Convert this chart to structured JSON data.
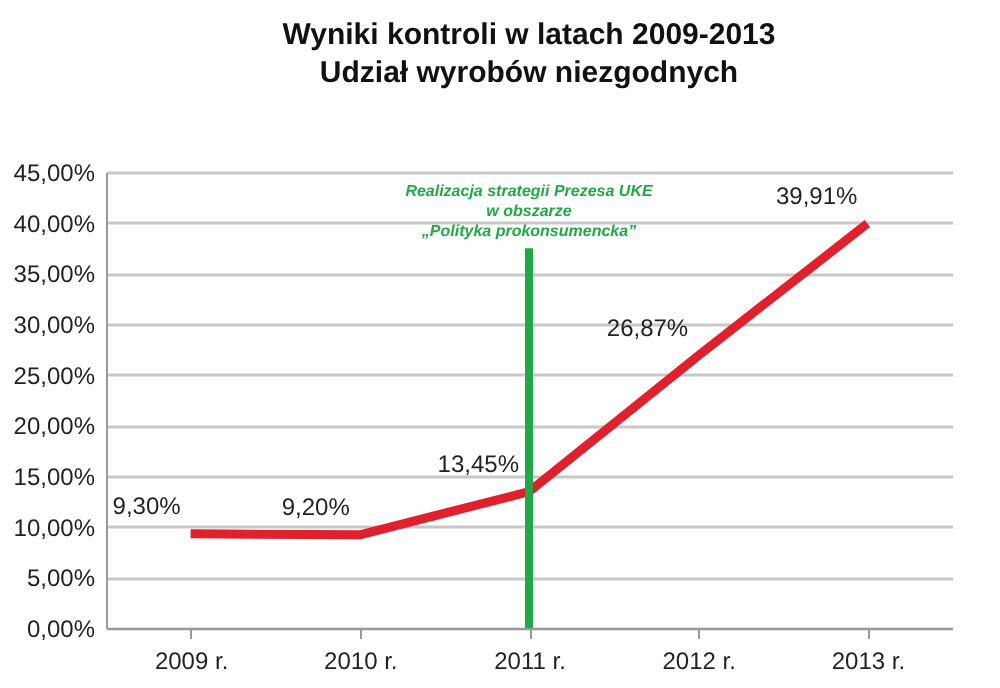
{
  "chart_data": {
    "type": "line",
    "title": "Wyniki kontroli w latach 2009-2013",
    "subtitle": "Udział wyrobów niezgodnych",
    "categories": [
      "2009 r.",
      "2010 r.",
      "2011 r.",
      "2012 r.",
      "2013 r."
    ],
    "series": [
      {
        "color": "#e0202a",
        "values": [
          9.3,
          9.2,
          13.45,
          26.87,
          39.91
        ],
        "value_labels": [
          "9,30%",
          "9,20%",
          "13,45%",
          "26,87%",
          "39,91%"
        ]
      }
    ],
    "ylim": [
      0,
      45
    ],
    "yticks": [
      {
        "value": 0,
        "label": "0,00%"
      },
      {
        "value": 5,
        "label": "5,00%"
      },
      {
        "value": 10,
        "label": "10,00%"
      },
      {
        "value": 15,
        "label": "15,00%"
      },
      {
        "value": 20,
        "label": "20,00%"
      },
      {
        "value": 25,
        "label": "25,00%"
      },
      {
        "value": 30,
        "label": "30,00%"
      },
      {
        "value": 35,
        "label": "35,00%"
      },
      {
        "value": 40,
        "label": "40,00%"
      },
      {
        "value": 45,
        "label": "45,00%"
      }
    ],
    "ref_lines": [
      {
        "axis": "x",
        "value": "2011 r.",
        "label": "Realizacja strategii Prezesa UKE\nw obszarze\n„Polityka prokonsumencka”",
        "color": "#22a846"
      }
    ],
    "grid": "y",
    "marker": "none",
    "line_style": "solid"
  }
}
